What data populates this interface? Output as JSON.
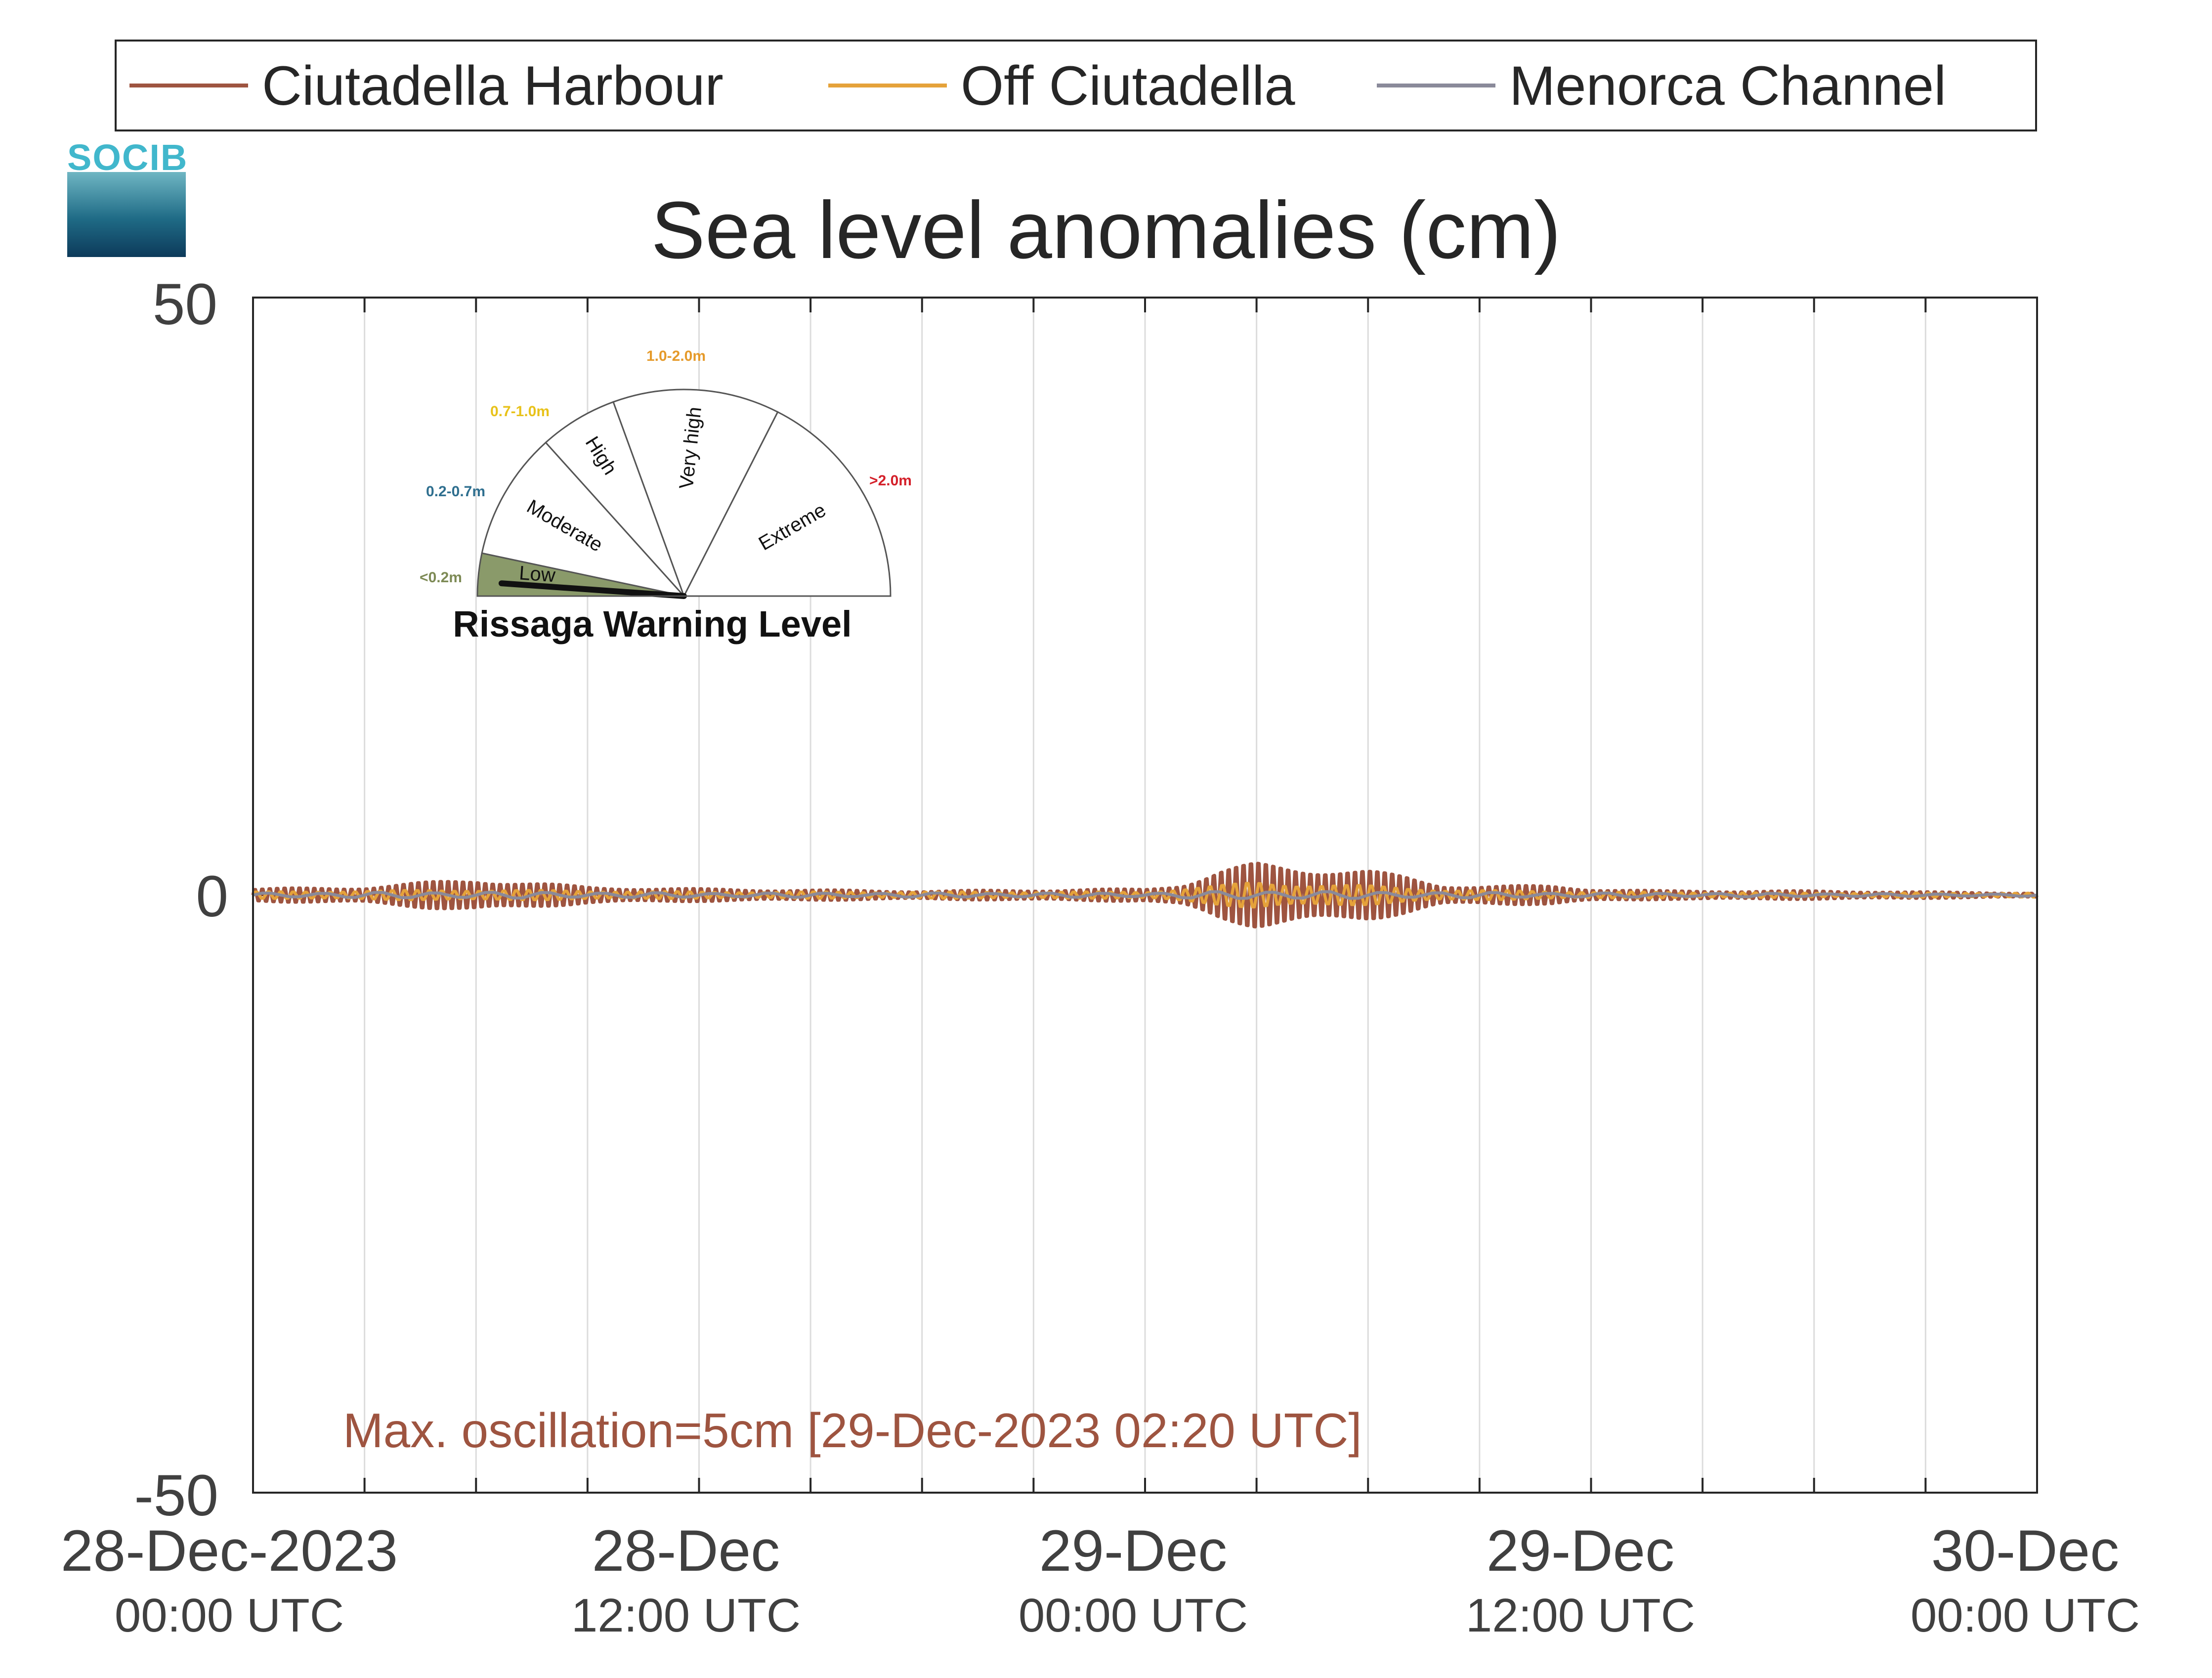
{
  "logo": {
    "text": "SOCIB"
  },
  "legend": [
    {
      "label": "Ciutadella Harbour",
      "color": "#9e5440"
    },
    {
      "label": "Off Ciutadella",
      "color": "#e5a23a"
    },
    {
      "label": "Menorca Channel",
      "color": "#8a8a9a"
    }
  ],
  "gauge": {
    "title": "Rissaga Warning Level",
    "current_level": "Low",
    "sectors": [
      {
        "name": "Low",
        "range": "<0.2m",
        "range_color": "#7d8a55",
        "fill": "#8a9a6a"
      },
      {
        "name": "Moderate",
        "range": "0.2-0.7m",
        "range_color": "#2f6f8f",
        "fill": "#ffffff"
      },
      {
        "name": "High",
        "range": "0.7-1.0m",
        "range_color": "#e8c21a",
        "fill": "#ffffff"
      },
      {
        "name": "Very high",
        "range": "1.0-2.0m",
        "range_color": "#e59a2a",
        "fill": "#ffffff"
      },
      {
        "name": "Extreme",
        "range": ">2.0m",
        "range_color": "#d4202a",
        "fill": "#ffffff"
      }
    ]
  },
  "annotation": "Max. oscillation=5cm [29-Dec-2023 02:20 UTC]",
  "chart_data": {
    "type": "line",
    "title": "Sea level anomalies (cm)",
    "xlabel": "",
    "ylabel": "",
    "ylim": [
      -50,
      50
    ],
    "yticks": [
      -50,
      0,
      50
    ],
    "x_range_hours": [
      0,
      48
    ],
    "grid": "vertical",
    "legend_position": "top",
    "xticks": [
      {
        "hour": 0,
        "date": "28-Dec-2023",
        "time": "00:00 UTC"
      },
      {
        "hour": 12,
        "date": "28-Dec",
        "time": "12:00 UTC"
      },
      {
        "hour": 24,
        "date": "29-Dec",
        "time": "00:00 UTC"
      },
      {
        "hour": 36,
        "date": "29-Dec",
        "time": "12:00 UTC"
      },
      {
        "hour": 48,
        "date": "30-Dec",
        "time": "00:00 UTC"
      }
    ],
    "series": [
      {
        "name": "Ciutadella Harbour",
        "color": "#9e5440",
        "envelope_hours": [
          0,
          3,
          6,
          9,
          12,
          15,
          18,
          21,
          24,
          25,
          26,
          27,
          28,
          29,
          30,
          31,
          32,
          33,
          35,
          36,
          38,
          40,
          42,
          45,
          48
        ],
        "envelope_cm": [
          0.6,
          0.8,
          1.6,
          0.8,
          0.6,
          0.5,
          0.4,
          0.5,
          0.6,
          1.1,
          2.4,
          3.1,
          2.9,
          2.7,
          2.4,
          1.8,
          1.0,
          0.9,
          0.9,
          0.6,
          0.4,
          0.4,
          0.4,
          0.3,
          0.2
        ],
        "period_min": 12
      },
      {
        "name": "Off Ciutadella",
        "color": "#e5a23a",
        "envelope_hours": [
          0,
          6,
          12,
          18,
          24,
          26,
          27,
          28,
          30,
          32,
          36,
          42,
          48
        ],
        "envelope_cm": [
          0.3,
          0.5,
          0.3,
          0.3,
          0.3,
          0.9,
          1.3,
          1.1,
          0.9,
          0.5,
          0.3,
          0.2,
          0.2
        ],
        "period_min": 20
      },
      {
        "name": "Menorca Channel",
        "color": "#8a8a9a",
        "envelope_hours": [
          0,
          6,
          12,
          24,
          27,
          30,
          36,
          48
        ],
        "envelope_cm": [
          0.2,
          0.3,
          0.2,
          0.2,
          0.4,
          0.3,
          0.2,
          0.1
        ],
        "period_min": 90
      }
    ]
  }
}
